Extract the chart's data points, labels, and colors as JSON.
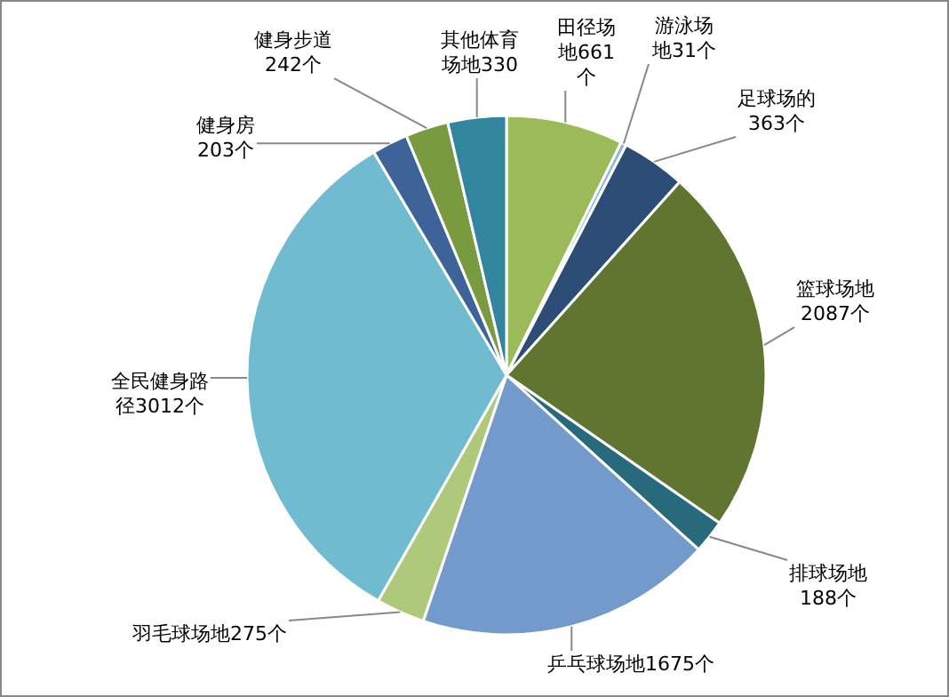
{
  "chart_data": {
    "type": "pie",
    "categories": [
      "田径场地",
      "游泳场地",
      "足球场的",
      "篮球场地",
      "排球场地",
      "乒乓球场地",
      "羽毛球场地",
      "全民健身路径",
      "健身房",
      "健身步道",
      "其他体育场地"
    ],
    "values": [
      661,
      31,
      363,
      2087,
      188,
      1675,
      275,
      3012,
      203,
      242,
      330
    ],
    "value_labels": [
      "661个",
      "31个",
      "363个",
      "2087个",
      "188个",
      "1675个",
      "275个",
      "3012个",
      "203个",
      "242个",
      "330"
    ],
    "colors": [
      "#9bbb59",
      "#8eb4e3",
      "#2c4d75",
      "#5f7530",
      "#276a7c",
      "#729aca",
      "#afc97a",
      "#71bbd0",
      "#3d6399",
      "#7a9a3f",
      "#31859c"
    ]
  }
}
